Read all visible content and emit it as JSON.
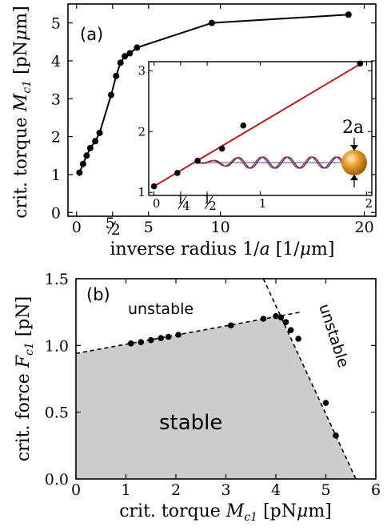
{
  "chart_data": [
    {
      "type": "line",
      "panel_label": "(a)",
      "xlabel_text": "inverse radius",
      "xlabel_math": "1/a [1/μm]",
      "ylabel_text": "crit. torque",
      "ylabel_math": "M_c1 [pNμm]",
      "xlim": [
        -0.6,
        20.8
      ],
      "ylim": [
        -0.1,
        5.5
      ],
      "x_ticks": [
        {
          "v": 0,
          "t": "0"
        },
        {
          "v": 2.5,
          "t": "5/2"
        },
        {
          "v": 5,
          "t": "5"
        },
        {
          "v": 10,
          "t": "10"
        },
        {
          "v": 20,
          "t": "20"
        }
      ],
      "y_ticks": [
        "0",
        "1",
        "2",
        "3",
        "4",
        "5"
      ],
      "series": [
        {
          "x": [
            0.2,
            0.45,
            0.7,
            0.95,
            1.3,
            1.6,
            2.4,
            2.75,
            3.05,
            3.35,
            3.7,
            4.2,
            9.4,
            18.9
          ],
          "y": [
            1.05,
            1.28,
            1.5,
            1.7,
            1.88,
            2.1,
            3.1,
            3.6,
            3.95,
            4.12,
            4.2,
            4.35,
            5.0,
            5.22
          ]
        }
      ],
      "inset": {
        "xlim": [
          -0.05,
          2.05
        ],
        "ylim": [
          0.95,
          3.15
        ],
        "x_ticks": [
          {
            "v": 0,
            "t": "0"
          },
          {
            "v": 0.25,
            "t": "1/4"
          },
          {
            "v": 0.5,
            "t": "1/2"
          },
          {
            "v": 1,
            "t": "1"
          },
          {
            "v": 2,
            "t": "2"
          }
        ],
        "y_ticks": [
          "1",
          "2",
          "3"
        ],
        "fit_line": {
          "x": [
            0,
            1.95
          ],
          "y": [
            1.1,
            3.12
          ],
          "color": "#cc0000"
        },
        "points": {
          "x": [
            0.0,
            0.22,
            0.41,
            0.64,
            0.84,
            1.94
          ],
          "y": [
            1.1,
            1.32,
            1.52,
            1.72,
            2.1,
            3.12
          ]
        },
        "bead_label": "2a",
        "bead_color": "#e08a12",
        "filament_colors": [
          "#3333aa",
          "#aa3333"
        ]
      }
    },
    {
      "type": "scatter",
      "panel_label": "(b)",
      "xlabel_text": "crit. torque",
      "xlabel_math": "M_c1 [pNμm]",
      "ylabel_text": "crit. force",
      "ylabel_math": "F_c1 [pN]",
      "xlim": [
        0,
        6
      ],
      "ylim": [
        0,
        1.5
      ],
      "x_ticks": [
        "0",
        "1",
        "2",
        "3",
        "4",
        "5",
        "6"
      ],
      "y_ticks": [
        "0.0",
        "0.5",
        "1.0",
        "1.5"
      ],
      "region_labels": {
        "stable": "stable",
        "unstable_left": "unstable",
        "unstable_right": "unstable"
      },
      "stable_fill": "#cccccc",
      "boundary_1": {
        "x": [
          0,
          4.5
        ],
        "y": [
          0.94,
          1.25
        ]
      },
      "boundary_2": {
        "x": [
          3.75,
          5.6
        ],
        "y": [
          1.5,
          0.0
        ]
      },
      "points": {
        "x": [
          1.1,
          1.3,
          1.5,
          1.7,
          1.85,
          2.05,
          3.1,
          3.75,
          4.0,
          4.1,
          4.2,
          4.3,
          4.45,
          5.0,
          5.2
        ],
        "y": [
          1.015,
          1.025,
          1.04,
          1.055,
          1.065,
          1.08,
          1.15,
          1.2,
          1.22,
          1.21,
          1.175,
          1.115,
          1.05,
          0.57,
          0.325
        ]
      }
    }
  ]
}
